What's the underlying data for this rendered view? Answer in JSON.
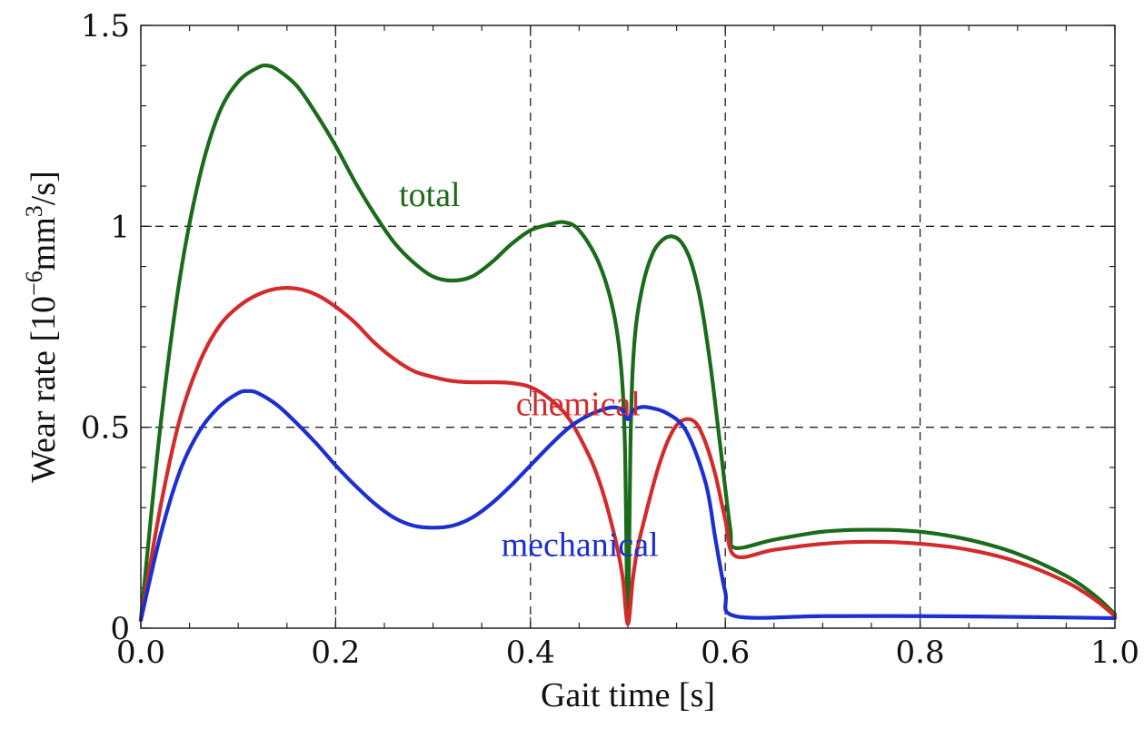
{
  "chart_data": {
    "type": "line",
    "xlabel": "Gait time [s]",
    "ylabel_parts": {
      "prefix": "Wear rate [10",
      "exp1": "−6",
      "mid": "mm",
      "exp2": "3",
      "suffix": "/s]"
    },
    "xlim": [
      0.0,
      1.0
    ],
    "ylim": [
      0,
      1.5
    ],
    "x_ticks": [
      "0.0",
      "0.2",
      "0.4",
      "0.6",
      "0.8",
      "1.0"
    ],
    "y_ticks": [
      "0",
      "0.5",
      "1",
      "1.5"
    ],
    "grid": true,
    "series": [
      {
        "name": "total",
        "color": "#1a6b1a",
        "points": [
          [
            0.0,
            0.02
          ],
          [
            0.02,
            0.5
          ],
          [
            0.04,
            0.87
          ],
          [
            0.06,
            1.12
          ],
          [
            0.08,
            1.28
          ],
          [
            0.1,
            1.36
          ],
          [
            0.12,
            1.395
          ],
          [
            0.13,
            1.4
          ],
          [
            0.14,
            1.39
          ],
          [
            0.16,
            1.35
          ],
          [
            0.18,
            1.28
          ],
          [
            0.2,
            1.2
          ],
          [
            0.22,
            1.11
          ],
          [
            0.24,
            1.03
          ],
          [
            0.26,
            0.96
          ],
          [
            0.28,
            0.91
          ],
          [
            0.3,
            0.875
          ],
          [
            0.32,
            0.865
          ],
          [
            0.34,
            0.875
          ],
          [
            0.36,
            0.91
          ],
          [
            0.38,
            0.955
          ],
          [
            0.4,
            0.99
          ],
          [
            0.42,
            1.005
          ],
          [
            0.435,
            1.01
          ],
          [
            0.45,
            0.99
          ],
          [
            0.47,
            0.91
          ],
          [
            0.485,
            0.79
          ],
          [
            0.493,
            0.65
          ],
          [
            0.497,
            0.45
          ],
          [
            0.5,
            0.02
          ],
          [
            0.503,
            0.5
          ],
          [
            0.507,
            0.72
          ],
          [
            0.515,
            0.85
          ],
          [
            0.525,
            0.93
          ],
          [
            0.535,
            0.965
          ],
          [
            0.545,
            0.975
          ],
          [
            0.555,
            0.96
          ],
          [
            0.565,
            0.91
          ],
          [
            0.575,
            0.81
          ],
          [
            0.585,
            0.65
          ],
          [
            0.595,
            0.45
          ],
          [
            0.605,
            0.25
          ],
          [
            0.61,
            0.2
          ],
          [
            0.65,
            0.22
          ],
          [
            0.7,
            0.24
          ],
          [
            0.75,
            0.245
          ],
          [
            0.8,
            0.24
          ],
          [
            0.85,
            0.22
          ],
          [
            0.9,
            0.185
          ],
          [
            0.95,
            0.13
          ],
          [
            0.98,
            0.08
          ],
          [
            1.0,
            0.035
          ]
        ]
      },
      {
        "name": "chemical",
        "color": "#d32b2b",
        "points": [
          [
            0.0,
            0.02
          ],
          [
            0.02,
            0.3
          ],
          [
            0.04,
            0.52
          ],
          [
            0.06,
            0.66
          ],
          [
            0.08,
            0.75
          ],
          [
            0.1,
            0.8
          ],
          [
            0.12,
            0.83
          ],
          [
            0.14,
            0.845
          ],
          [
            0.16,
            0.845
          ],
          [
            0.18,
            0.83
          ],
          [
            0.2,
            0.8
          ],
          [
            0.22,
            0.76
          ],
          [
            0.24,
            0.71
          ],
          [
            0.26,
            0.67
          ],
          [
            0.28,
            0.64
          ],
          [
            0.3,
            0.625
          ],
          [
            0.32,
            0.615
          ],
          [
            0.34,
            0.612
          ],
          [
            0.36,
            0.612
          ],
          [
            0.38,
            0.61
          ],
          [
            0.4,
            0.6
          ],
          [
            0.42,
            0.57
          ],
          [
            0.44,
            0.52
          ],
          [
            0.46,
            0.43
          ],
          [
            0.47,
            0.37
          ],
          [
            0.48,
            0.29
          ],
          [
            0.49,
            0.19
          ],
          [
            0.495,
            0.12
          ],
          [
            0.5,
            0.01
          ],
          [
            0.505,
            0.12
          ],
          [
            0.51,
            0.2
          ],
          [
            0.52,
            0.3
          ],
          [
            0.53,
            0.39
          ],
          [
            0.54,
            0.46
          ],
          [
            0.55,
            0.505
          ],
          [
            0.56,
            0.52
          ],
          [
            0.57,
            0.51
          ],
          [
            0.58,
            0.46
          ],
          [
            0.59,
            0.38
          ],
          [
            0.6,
            0.27
          ],
          [
            0.61,
            0.18
          ],
          [
            0.65,
            0.195
          ],
          [
            0.7,
            0.21
          ],
          [
            0.75,
            0.215
          ],
          [
            0.8,
            0.21
          ],
          [
            0.85,
            0.195
          ],
          [
            0.9,
            0.165
          ],
          [
            0.95,
            0.115
          ],
          [
            0.98,
            0.07
          ],
          [
            1.0,
            0.03
          ]
        ]
      },
      {
        "name": "mechanical",
        "color": "#1c2fd1",
        "points": [
          [
            0.0,
            0.02
          ],
          [
            0.02,
            0.23
          ],
          [
            0.04,
            0.39
          ],
          [
            0.06,
            0.49
          ],
          [
            0.08,
            0.55
          ],
          [
            0.1,
            0.585
          ],
          [
            0.11,
            0.59
          ],
          [
            0.12,
            0.585
          ],
          [
            0.14,
            0.555
          ],
          [
            0.16,
            0.51
          ],
          [
            0.18,
            0.46
          ],
          [
            0.2,
            0.405
          ],
          [
            0.22,
            0.355
          ],
          [
            0.24,
            0.31
          ],
          [
            0.26,
            0.275
          ],
          [
            0.28,
            0.255
          ],
          [
            0.3,
            0.25
          ],
          [
            0.32,
            0.255
          ],
          [
            0.34,
            0.275
          ],
          [
            0.36,
            0.31
          ],
          [
            0.38,
            0.355
          ],
          [
            0.4,
            0.405
          ],
          [
            0.42,
            0.455
          ],
          [
            0.44,
            0.5
          ],
          [
            0.46,
            0.53
          ],
          [
            0.48,
            0.548
          ],
          [
            0.49,
            0.548
          ],
          [
            0.495,
            0.54
          ],
          [
            0.5,
            0.52
          ],
          [
            0.505,
            0.54
          ],
          [
            0.51,
            0.548
          ],
          [
            0.52,
            0.55
          ],
          [
            0.54,
            0.535
          ],
          [
            0.56,
            0.49
          ],
          [
            0.58,
            0.36
          ],
          [
            0.59,
            0.22
          ],
          [
            0.6,
            0.09
          ],
          [
            0.61,
            0.03
          ],
          [
            0.7,
            0.03
          ],
          [
            0.8,
            0.03
          ],
          [
            0.9,
            0.028
          ],
          [
            1.0,
            0.025
          ]
        ]
      }
    ],
    "annotations": [
      {
        "text": "total",
        "series": "total",
        "x": 0.265,
        "y": 1.05
      },
      {
        "text": "chemical",
        "series": "chemical",
        "x": 0.385,
        "y": 0.53
      },
      {
        "text": "mechanical",
        "series": "mechanical",
        "x": 0.37,
        "y": 0.18
      }
    ]
  }
}
